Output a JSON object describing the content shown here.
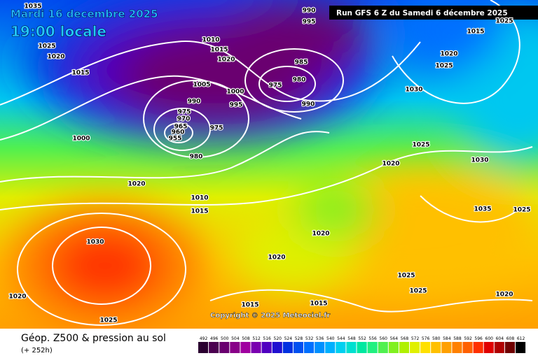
{
  "header": {
    "date": "Mardi 16 decembre 2025",
    "time": "19:00 locale",
    "run": "Run GFS 6 Z du Samedi 6 décembre 2025"
  },
  "copyright": "Copyright © 2025 Meteociel.fr",
  "footer": {
    "title": "Géop. Z500 & pression au sol",
    "lead": "(+ 252h)"
  },
  "isobar_labels": [
    "1035",
    "990",
    "995",
    "1025",
    "1015",
    "1025",
    "1020",
    "1010",
    "1015",
    "1020",
    "1020",
    "1025",
    "985",
    "975",
    "980",
    "1030",
    "1015",
    "1005",
    "1000",
    "990",
    "995",
    "990",
    "975",
    "970",
    "965",
    "960",
    "955",
    "975",
    "1000",
    "1025",
    "980",
    "1030",
    "1020",
    "1020",
    "1010",
    "1015",
    "1035",
    "1025",
    "1020",
    "1030",
    "1020",
    "1025",
    "1025",
    "1020",
    "1020",
    "1015",
    "1015",
    "1025"
  ],
  "colorbar": {
    "ticks": [
      492,
      496,
      500,
      504,
      508,
      512,
      516,
      520,
      524,
      528,
      532,
      536,
      540,
      544,
      548,
      552,
      556,
      560,
      564,
      568,
      572,
      576,
      580,
      584,
      588,
      592,
      596,
      600,
      604,
      608,
      612
    ],
    "colors": [
      "#2a0030",
      "#4b0050",
      "#6a0070",
      "#880088",
      "#a000a0",
      "#7a00b0",
      "#5000c0",
      "#2010d0",
      "#0030e0",
      "#0050f0",
      "#0070ff",
      "#0090ff",
      "#00b0ff",
      "#00d0f0",
      "#00e0d0",
      "#00e8a0",
      "#20f080",
      "#50f050",
      "#80f020",
      "#b0f000",
      "#e0f000",
      "#ffe000",
      "#ffc000",
      "#ffa000",
      "#ff8000",
      "#ff6000",
      "#ff3000",
      "#e00000",
      "#b00000",
      "#700000",
      "#000000"
    ]
  }
}
